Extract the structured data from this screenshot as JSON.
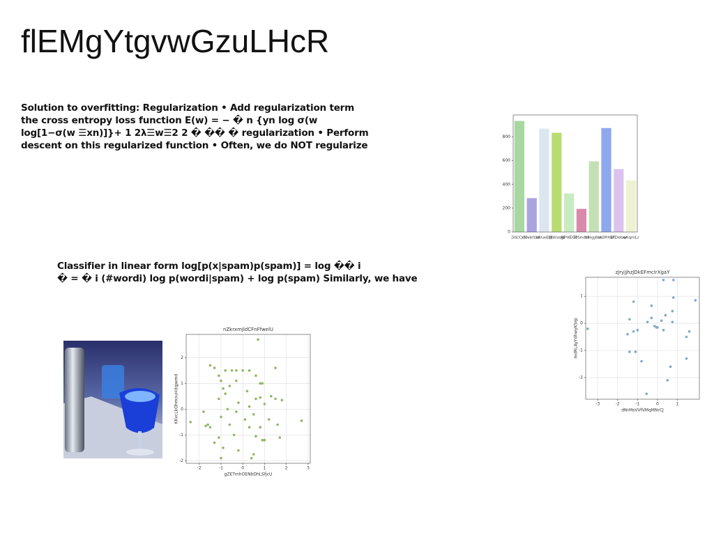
{
  "title": "flEMgYtgvwGzuLHcR",
  "paragraphs": [
    [
      "Solution to overfitting: Regularization • Add regularization term",
      "the cross entropy loss function E(w) = − � n {yn log σ(w",
      "log[1−σ(w ☰xn)]}+ 1 2λ☰w☰2 2 � �� � regularization • Perform",
      "descent on this regularized function • Often, we do NOT regularize"
    ],
    [
      "Classifier in linear form log[p(x|spam)p(spam)] = log �� i",
      "� = � i (#wordi) log p(wordi|spam) + log p(spam) Similarly, we have"
    ]
  ],
  "chart_data": [
    {
      "type": "bar",
      "categories": [
        "ZkISClCJkDD",
        "hDwbnfQwb",
        "lLWXuwiEXjK",
        "EXjWUunjlRE",
        "gPlIEGf",
        "TDSmdNe",
        "kBnggWzA",
        "vxDPrKEF",
        "kfDebw",
        "oXqmLr"
      ],
      "values": [
        935,
        285,
        870,
        835,
        325,
        195,
        595,
        875,
        530,
        435
      ],
      "colors": [
        "#a8d8a0",
        "#a9a3e0",
        "#dbe6f0",
        "#b9dc72",
        "#c8ecc0",
        "#d98aac",
        "#c2e0b4",
        "#8ea8ee",
        "#dcc3ee",
        "#eef2d2"
      ],
      "ylim": [
        0,
        985
      ],
      "yticks": [
        0,
        200,
        400,
        600,
        800
      ],
      "grid": false
    },
    {
      "type": "scatter",
      "title": "nZkrxmjldCFnFfwelU",
      "x_label": "gZETmhOENbDhLSfjcU",
      "y_label": "KKvcLkOhmouHdqjwmd",
      "color": "#8fb863",
      "x": [
        0.7,
        -1.5,
        -1.3,
        -0.8,
        -0.5,
        -0.3,
        0,
        0.3,
        1.5,
        -1.1,
        0.6,
        -1,
        -0.3,
        0.8,
        0.9,
        -0.6,
        -0.9,
        0.2,
        -0.8,
        1.3,
        -1.1,
        0.6,
        0.8,
        1.5,
        1.8,
        -0.2,
        1.0,
        0.3,
        -0.7,
        -0.3,
        0.5,
        -1.8,
        -1.0,
        0.1,
        1.2,
        2.7,
        -2.4,
        -1.6,
        -1.5,
        -0.6,
        0.3,
        0.8,
        1.6,
        -1.1,
        -0.4,
        0.6,
        0.9,
        1.7,
        -1.3,
        -0.9,
        -0.2,
        0.5,
        -1.0,
        0.4,
        1.0,
        -1.7
      ],
      "y": [
        2.7,
        1.7,
        1.6,
        1.5,
        1.5,
        1.5,
        1.5,
        1.5,
        1.6,
        1.3,
        1.3,
        1.1,
        1.1,
        1,
        1,
        0.9,
        0.8,
        0.7,
        0.6,
        0.5,
        0.4,
        0.4,
        0.45,
        0.4,
        0.35,
        0.25,
        0.2,
        0.1,
        0,
        -0.1,
        -0.2,
        -0.1,
        -0.3,
        -0.4,
        -0.4,
        -0.45,
        -0.5,
        -0.6,
        -0.7,
        -0.6,
        -0.7,
        -0.7,
        -0.6,
        -1.1,
        -1,
        -1.05,
        -1.2,
        -1.1,
        -1.3,
        -1.5,
        -1.6,
        -1.75,
        -1.9,
        -1.9,
        -1.2,
        -0.65
      ],
      "xlim": [
        -2.6,
        3.1
      ],
      "xticks": [
        -2,
        -1,
        0,
        1,
        2,
        3
      ],
      "ylim": [
        -2.1,
        2.9
      ],
      "yticks": [
        -2,
        -1,
        0,
        1,
        2
      ],
      "grid": true
    },
    {
      "type": "scatter",
      "title": "zJryjjhzJDkEFmclrXgaY",
      "x_label": "dNrMsVVfVMqMNrCJ",
      "y_label": "mdRLAyYdhwyKSrp",
      "color": "#7eaac6",
      "x": [
        -3.5,
        0.3,
        0.8,
        1.9,
        0.8,
        -1.2,
        -0.3,
        0.75,
        -1.4,
        0.4,
        -0.3,
        -0.5,
        0.2,
        0.75,
        -0.15,
        0,
        0.3,
        -1.0,
        -1.2,
        -1.5,
        1.6,
        1.45,
        -1.4,
        -1.1,
        -0.8,
        1.45,
        0.65,
        0.5,
        -0.55,
        -0.05
      ],
      "y": [
        -0.2,
        1.6,
        1.6,
        0.85,
        0.95,
        0.8,
        0.65,
        0.45,
        0.15,
        0.3,
        0.2,
        0.05,
        0.1,
        0.05,
        -0.1,
        -0.15,
        -0.25,
        -0.25,
        -0.3,
        -0.4,
        -0.3,
        -0.5,
        -1.05,
        -1.05,
        -1.4,
        -1.3,
        -1.6,
        -2.1,
        -2.6,
        -0.15
      ],
      "xlim": [
        -3.6,
        2.1
      ],
      "xticks": [
        -3,
        -2,
        -1,
        0,
        1
      ],
      "ylim": [
        -2.8,
        1.7
      ],
      "yticks": [
        -2,
        -1,
        0,
        1
      ],
      "grid": true
    }
  ]
}
